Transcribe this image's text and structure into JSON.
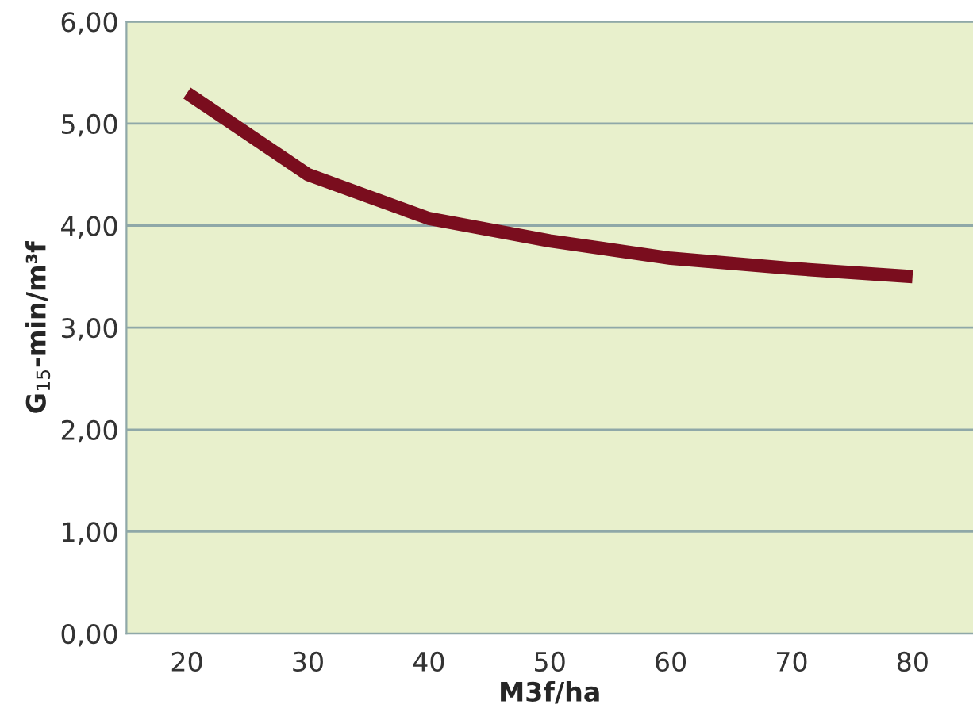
{
  "chart_data": {
    "type": "line",
    "xlabel": "M3f/ha",
    "ylabel": "G$_{15}$-min/m³f",
    "categories": [
      "20",
      "30",
      "40",
      "50",
      "60",
      "70",
      "80"
    ],
    "series": [
      {
        "color": "#7a0d1e",
        "values": [
          5.3,
          4.5,
          4.07,
          3.85,
          3.68,
          3.58,
          3.5
        ]
      }
    ],
    "ylim": [
      0,
      6
    ],
    "yticks": [
      {
        "value": 0,
        "label": "0,00"
      },
      {
        "value": 1,
        "label": "1,00"
      },
      {
        "value": 2,
        "label": "2,00"
      },
      {
        "value": 3,
        "label": "3,00"
      },
      {
        "value": 4,
        "label": "4,00"
      },
      {
        "value": 5,
        "label": "5,00"
      },
      {
        "value": 6,
        "label": "6,00"
      }
    ],
    "grid": "y",
    "marker": "none",
    "line_style": "solid"
  }
}
